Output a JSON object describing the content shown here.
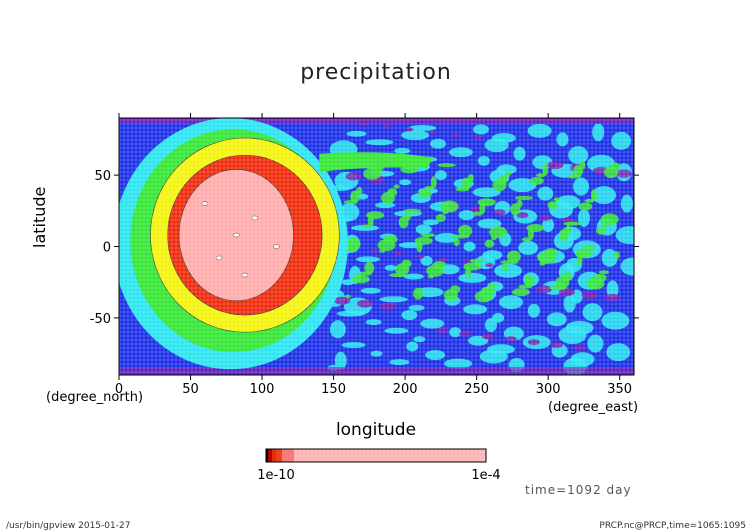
{
  "chart_data": {
    "type": "heatmap",
    "title": "precipitation",
    "xlabel": "longitude",
    "xunit": "(degree_east)",
    "ylabel": "latitude",
    "yunit": "(degree_north)",
    "xlim": [
      0,
      360
    ],
    "ylim": [
      -90,
      90
    ],
    "xticks": [
      "0",
      "50",
      "100",
      "150",
      "200",
      "250",
      "300",
      "350"
    ],
    "yticks": [
      "50",
      "0",
      "-50"
    ],
    "features": [
      {
        "name": "rain-core",
        "lon": 82,
        "lat": 8,
        "rlon": 40,
        "rlat": 46
      },
      {
        "name": "rain-ring",
        "lon": 88,
        "lat": 8,
        "rlon": 54,
        "rlat": 56
      },
      {
        "name": "jet-tail",
        "lon_start": 150,
        "lon_end": 220,
        "lat": 58
      }
    ],
    "colorbar": {
      "labels": [
        "1e-10",
        "1e-4"
      ],
      "segment_colors": [
        "#000000",
        "#b00000",
        "#e03010",
        "#f04020",
        "#f87a7a",
        "#ffb0b0"
      ]
    },
    "palette": {
      "purple": "#7a1ab0",
      "blue": "#1a2ee8",
      "cyan": "#27e4f0",
      "green": "#32e632",
      "yellow": "#f4f40a",
      "red": "#f0280a",
      "pink": "#ffaaaa"
    }
  },
  "annotations": {
    "time": "time=1092 day",
    "footer_left": "/usr/bin/gpview  2015-01-27",
    "footer_right": "PRCP.nc@PRCP,time=1065:1095"
  }
}
